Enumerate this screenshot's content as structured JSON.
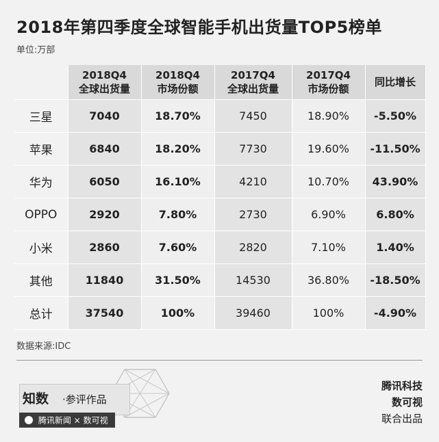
{
  "title": "2018年第四季度全球智能手机出货量TOP5榜单",
  "unit_label": "单位:万部",
  "source": "数据来源:IDC",
  "footer": {
    "brand_title": "知数",
    "brand_sub": "·参评作品",
    "partner_left": "腾讯新闻",
    "partner_sep": "×",
    "partner_right": "数可视",
    "credit_1": "腾讯科技",
    "credit_2": "数可视",
    "credit_3": "联合出品"
  },
  "colors": {
    "header_bg": "#d9d9d9",
    "shade_col_bg": "#e3e3e3",
    "plain_col_bg": "#efefef",
    "page_bg": "#f2f2f2"
  },
  "chart_data": {
    "type": "table",
    "columns": [
      {
        "line1": "2018Q4",
        "line2": "全球出货量"
      },
      {
        "line1": "2018Q4",
        "line2": "市场份额"
      },
      {
        "line1": "2017Q4",
        "line2": "全球出货量"
      },
      {
        "line1": "2017Q4",
        "line2": "市场份额"
      },
      {
        "line1": "同比增长",
        "line2": ""
      }
    ],
    "rows": [
      {
        "brand": "三星",
        "values": [
          "7040",
          "18.70%",
          "7450",
          "18.90%",
          "-5.50%"
        ]
      },
      {
        "brand": "苹果",
        "values": [
          "6840",
          "18.20%",
          "7730",
          "19.60%",
          "-11.50%"
        ]
      },
      {
        "brand": "华为",
        "values": [
          "6050",
          "16.10%",
          "4210",
          "10.70%",
          "43.90%"
        ]
      },
      {
        "brand": "OPPO",
        "values": [
          "2920",
          "7.80%",
          "2730",
          "6.90%",
          "6.80%"
        ]
      },
      {
        "brand": "小米",
        "values": [
          "2860",
          "7.60%",
          "2820",
          "7.10%",
          "1.40%"
        ]
      },
      {
        "brand": "其他",
        "values": [
          "11840",
          "31.50%",
          "14530",
          "36.80%",
          "-18.50%"
        ]
      },
      {
        "brand": "总计",
        "values": [
          "37540",
          "100%",
          "39460",
          "100%",
          "-4.90%"
        ]
      }
    ]
  }
}
